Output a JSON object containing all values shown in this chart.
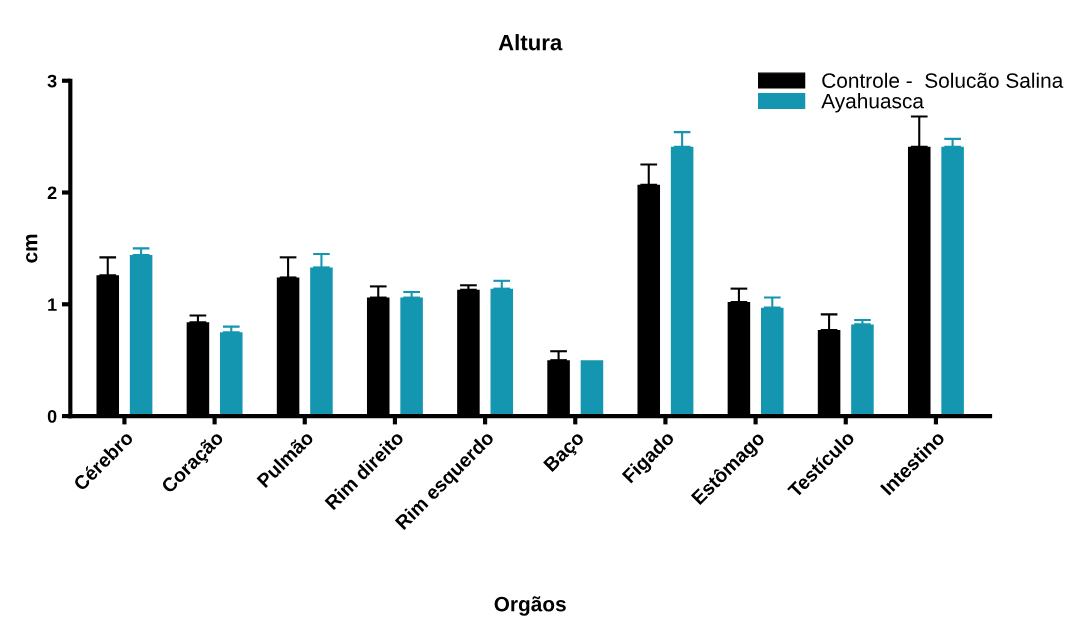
{
  "chart_data": {
    "type": "bar",
    "title": "Altura",
    "xlabel": "Orgãos",
    "ylabel": "cm",
    "categories": [
      "Cérebro",
      "Coração",
      "Pulmão",
      "Rim direito",
      "Rim esquerdo",
      "Baço",
      "Figado",
      "Estômago",
      "Testículo",
      "Intestino"
    ],
    "series": [
      {
        "name": "Controle -  Solucão Salina",
        "color": "#000000",
        "values": [
          1.26,
          0.84,
          1.24,
          1.06,
          1.13,
          0.5,
          2.07,
          1.02,
          0.77,
          2.41
        ],
        "errors": [
          [
            1.26,
            1.42
          ],
          [
            0.84,
            0.9
          ],
          [
            1.24,
            1.42
          ],
          [
            1.06,
            1.16
          ],
          [
            1.13,
            1.17
          ],
          [
            0.5,
            0.58
          ],
          [
            2.07,
            2.25
          ],
          [
            1.02,
            1.14
          ],
          [
            0.77,
            0.91
          ],
          [
            2.41,
            2.68
          ]
        ]
      },
      {
        "name": "Ayahuasca",
        "color": "#1496b0",
        "values": [
          1.44,
          0.75,
          1.33,
          1.06,
          1.14,
          0.5,
          2.41,
          0.97,
          0.82,
          2.41
        ],
        "errors": [
          [
            1.44,
            1.5
          ],
          [
            0.75,
            0.8
          ],
          [
            1.33,
            1.45
          ],
          [
            1.06,
            1.11
          ],
          [
            1.14,
            1.21
          ],
          null,
          [
            2.41,
            2.54
          ],
          [
            0.97,
            1.06
          ],
          [
            0.82,
            0.86
          ],
          [
            2.41,
            2.48
          ]
        ]
      }
    ],
    "ylim": [
      0,
      3
    ],
    "yticks": [
      0,
      1,
      2,
      3
    ],
    "grid": false,
    "legend": "top right"
  }
}
